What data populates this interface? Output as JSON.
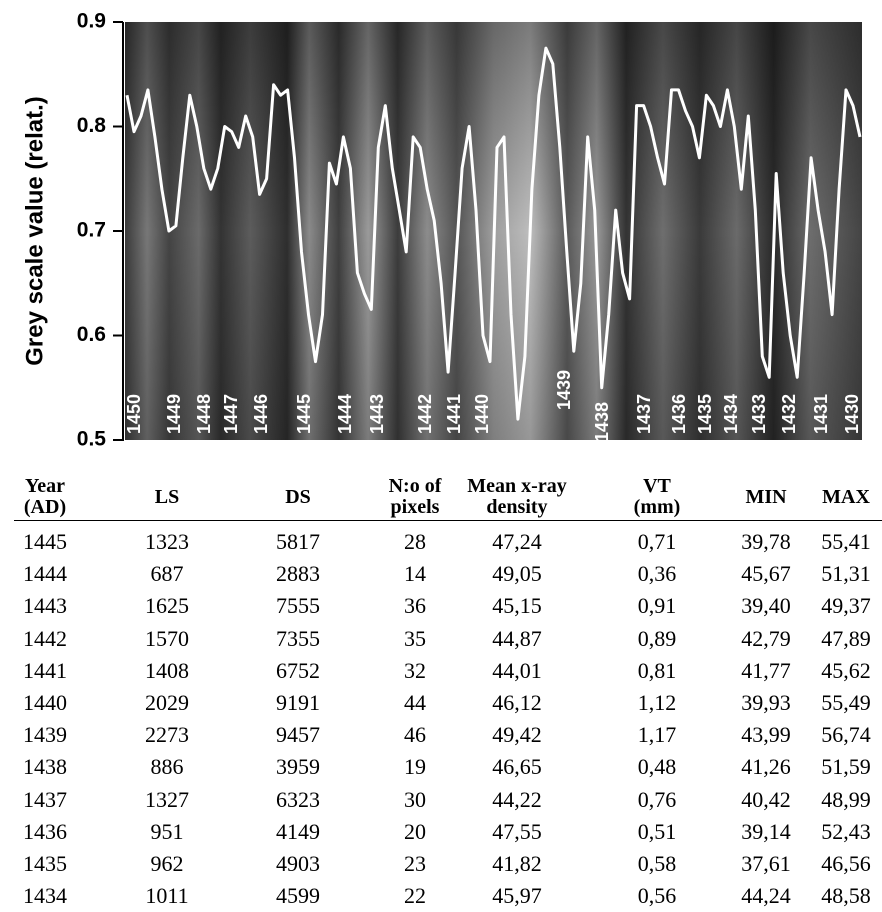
{
  "chart_data": {
    "type": "line",
    "y_label": "Grey scale value (relat.)",
    "ylim": [
      0.5,
      0.9
    ],
    "yticks": [
      0.5,
      0.6,
      0.7,
      0.8,
      0.9
    ],
    "color": "#ffffff",
    "values": [
      0.83,
      0.795,
      0.81,
      0.835,
      0.79,
      0.74,
      0.7,
      0.705,
      0.77,
      0.83,
      0.8,
      0.76,
      0.74,
      0.76,
      0.8,
      0.795,
      0.78,
      0.81,
      0.79,
      0.735,
      0.75,
      0.84,
      0.83,
      0.835,
      0.77,
      0.68,
      0.62,
      0.575,
      0.62,
      0.765,
      0.745,
      0.79,
      0.76,
      0.66,
      0.64,
      0.625,
      0.78,
      0.82,
      0.76,
      0.72,
      0.68,
      0.79,
      0.78,
      0.74,
      0.71,
      0.65,
      0.565,
      0.66,
      0.76,
      0.8,
      0.72,
      0.6,
      0.575,
      0.78,
      0.79,
      0.62,
      0.52,
      0.58,
      0.74,
      0.83,
      0.875,
      0.86,
      0.78,
      0.68,
      0.585,
      0.65,
      0.79,
      0.72,
      0.55,
      0.62,
      0.72,
      0.66,
      0.635,
      0.82,
      0.82,
      0.8,
      0.77,
      0.745,
      0.835,
      0.835,
      0.815,
      0.8,
      0.77,
      0.83,
      0.82,
      0.8,
      0.835,
      0.8,
      0.74,
      0.81,
      0.72,
      0.58,
      0.56,
      0.755,
      0.66,
      0.6,
      0.56,
      0.66,
      0.77,
      0.72,
      0.68,
      0.62,
      0.74,
      0.835,
      0.82,
      0.79
    ],
    "ring_labels": [
      "1450",
      "1449",
      "1448",
      "1447",
      "1446",
      "1445",
      "1444",
      "1443",
      "1442",
      "1441",
      "1440",
      "1439",
      "1438",
      "1437",
      "1436",
      "1435",
      "1434",
      "1433",
      "1432",
      "1431",
      "1430"
    ]
  },
  "table": {
    "header": [
      "Year\n(AD)",
      "LS",
      "DS",
      "N:o of\npixels",
      "Mean x-ray\ndensity",
      "VT\n(mm)",
      "MIN",
      "MAX"
    ],
    "rows": [
      [
        "1445",
        "1323",
        "5817",
        "28",
        "47,24",
        "0,71",
        "39,78",
        "55,41"
      ],
      [
        "1444",
        "687",
        "2883",
        "14",
        "49,05",
        "0,36",
        "45,67",
        "51,31"
      ],
      [
        "1443",
        "1625",
        "7555",
        "36",
        "45,15",
        "0,91",
        "39,40",
        "49,37"
      ],
      [
        "1442",
        "1570",
        "7355",
        "35",
        "44,87",
        "0,89",
        "42,79",
        "47,89"
      ],
      [
        "1441",
        "1408",
        "6752",
        "32",
        "44,01",
        "0,81",
        "41,77",
        "45,62"
      ],
      [
        "1440",
        "2029",
        "9191",
        "44",
        "46,12",
        "1,12",
        "39,93",
        "55,49"
      ],
      [
        "1439",
        "2273",
        "9457",
        "46",
        "49,42",
        "1,17",
        "43,99",
        "56,74"
      ],
      [
        "1438",
        "886",
        "3959",
        "19",
        "46,65",
        "0,48",
        "41,26",
        "51,59"
      ],
      [
        "1437",
        "1327",
        "6323",
        "30",
        "44,22",
        "0,76",
        "40,42",
        "48,99"
      ],
      [
        "1436",
        "951",
        "4149",
        "20",
        "47,55",
        "0,51",
        "39,14",
        "52,43"
      ],
      [
        "1435",
        "962",
        "4903",
        "23",
        "41,82",
        "0,58",
        "37,61",
        "46,56"
      ],
      [
        "1434",
        "1011",
        "4599",
        "22",
        "45,97",
        "0,56",
        "44,24",
        "48,58"
      ]
    ]
  }
}
